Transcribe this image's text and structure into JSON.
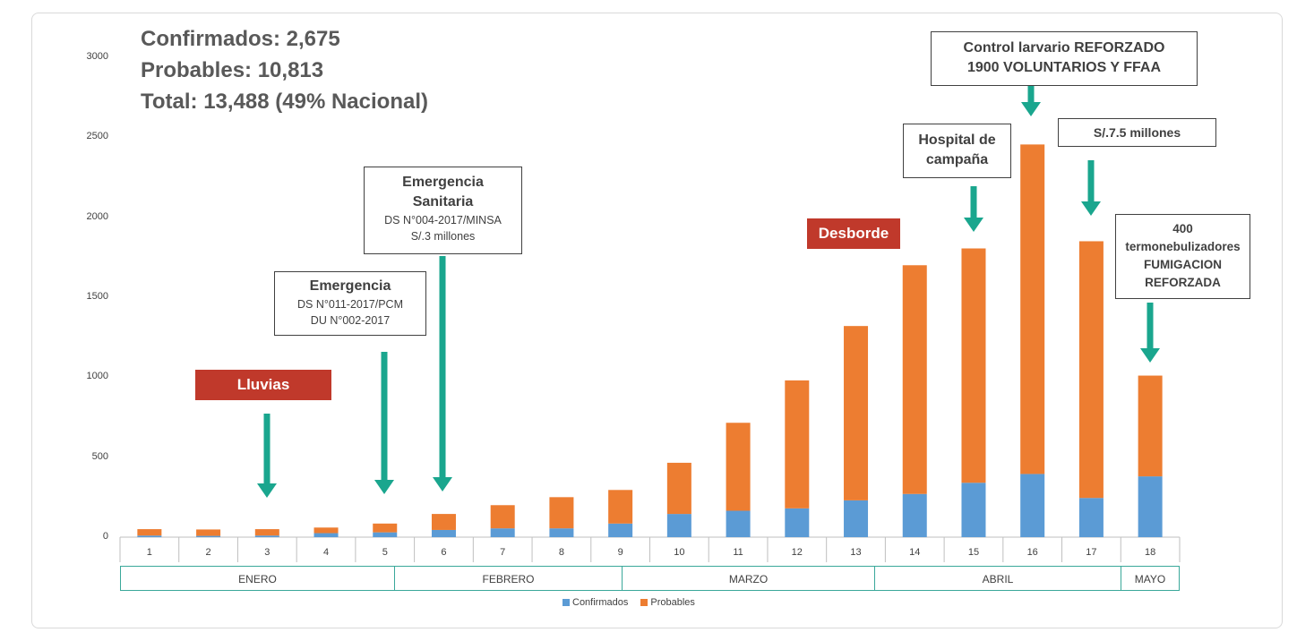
{
  "summary": {
    "confirmed": "Confirmados: 2,675",
    "probable": "Probables: 10,813",
    "total": "Total: 13,488 (49% Nacional)"
  },
  "colors": {
    "confirmados": "#5b9bd5",
    "probables": "#ed7d31",
    "arrow": "#1aa68e",
    "tag": "#c0392b",
    "month_border": "#3aa89a"
  },
  "chart_data": {
    "type": "bar",
    "stacked": true,
    "categories": [
      "1",
      "2",
      "3",
      "4",
      "5",
      "6",
      "7",
      "8",
      "9",
      "10",
      "11",
      "12",
      "13",
      "14",
      "15",
      "16",
      "17",
      "18"
    ],
    "series": [
      {
        "name": "Confirmados",
        "values": [
          10,
          8,
          10,
          25,
          30,
          45,
          55,
          55,
          85,
          145,
          165,
          180,
          230,
          270,
          340,
          395,
          245,
          380
        ]
      },
      {
        "name": "Probables",
        "values": [
          40,
          40,
          40,
          35,
          55,
          100,
          145,
          195,
          210,
          320,
          550,
          800,
          1090,
          1430,
          1465,
          2060,
          1605,
          630
        ]
      }
    ],
    "ylim": [
      0,
      3000
    ],
    "yticks": [
      "0",
      "500",
      "1000",
      "1500",
      "2000",
      "2500",
      "3000"
    ],
    "months": [
      {
        "label": "ENERO"
      },
      {
        "label": "FEBRERO"
      },
      {
        "label": "MARZO"
      },
      {
        "label": "ABRIL"
      },
      {
        "label": "MAYO"
      }
    ],
    "legend": [
      "Confirmados",
      "Probables"
    ]
  },
  "annotations": {
    "lluvias": "Lluvias",
    "desborde": "Desborde",
    "emergencia": {
      "title": "Emergencia",
      "line1": "DS N°011-2017/PCM",
      "line2": "DU N°002-2017"
    },
    "sanitaria": {
      "title1": "Emergencia",
      "title2": "Sanitaria",
      "line1": "DS N°004-2017/MINSA",
      "line2": "S/.3 millones"
    },
    "hospital": {
      "line1": "Hospital de",
      "line2": "campaña"
    },
    "control": {
      "line1": "Control larvario REFORZADO",
      "line2": "1900 VOLUNTARIOS Y FFAA"
    },
    "money": "S/.7.5 millones",
    "fumigacion": {
      "line1": "400",
      "line2": "termonebulizadores",
      "line3": "FUMIGACION",
      "line4": "REFORZADA"
    }
  }
}
